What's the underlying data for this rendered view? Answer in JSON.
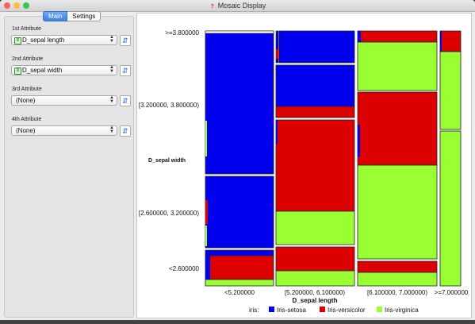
{
  "window": {
    "title": "Mosaic Display"
  },
  "tabs": [
    "Main",
    "Settings"
  ],
  "attributes": [
    {
      "label": "1st Attribute",
      "value": "D_sepal length",
      "discrete": true
    },
    {
      "label": "2nd Attribute",
      "value": "D_sepal width",
      "discrete": true
    },
    {
      "label": "3rd Attribute",
      "value": "(None)",
      "discrete": false
    },
    {
      "label": "4th Attribute",
      "value": "(None)",
      "discrete": false
    }
  ],
  "mosaic": {
    "x_label": "D_sepal length",
    "y_label": "D_sepal width",
    "x_categories": [
      "<5.200000",
      "[5.200000, 6.100000)",
      "[6.100000, 7.000000)",
      ">=7.000000"
    ],
    "y_categories": [
      ">=3.800000",
      "[3.200000, 3.800000)",
      "[2.600000, 3.200000)",
      "<2.600000"
    ],
    "legend_title": "iris:",
    "legend": [
      {
        "name": "Iris-setosa",
        "color": "#0000ee"
      },
      {
        "name": "Iris-versicolor",
        "color": "#dd0000"
      },
      {
        "name": "Iris-virginica",
        "color": "#99ff33"
      }
    ]
  }
}
